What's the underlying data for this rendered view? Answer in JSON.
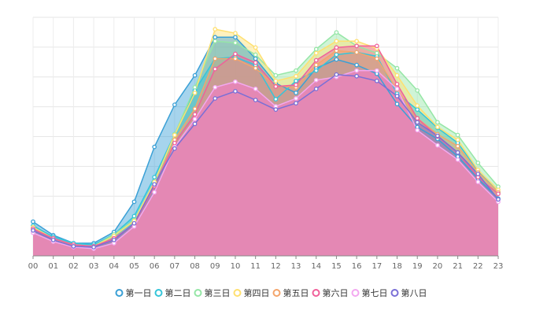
{
  "chart_data": {
    "type": "area",
    "x": [
      "00",
      "01",
      "02",
      "03",
      "04",
      "05",
      "06",
      "07",
      "08",
      "09",
      "10",
      "11",
      "12",
      "13",
      "14",
      "15",
      "16",
      "17",
      "18",
      "19",
      "20",
      "21",
      "22",
      "23"
    ],
    "yticks_visible": false,
    "grid": true,
    "legend_position": "bottom",
    "series": [
      {
        "name": "第一日",
        "color": "#3aa0d6",
        "values": [
          43,
          26,
          16,
          16,
          30,
          68,
          137,
          190,
          227,
          275,
          275,
          248,
          217,
          205,
          236,
          247,
          240,
          229,
          191,
          162,
          147,
          125,
          97,
          72
        ]
      },
      {
        "name": "第二日",
        "color": "#35c5d9",
        "values": [
          38,
          24,
          16,
          14,
          27,
          50,
          99,
          153,
          208,
          248,
          250,
          240,
          197,
          220,
          233,
          253,
          256,
          251,
          204,
          184,
          161,
          142,
          107,
          80
        ]
      },
      {
        "name": "第三日",
        "color": "#95e6a6",
        "values": [
          36,
          22,
          14,
          12,
          27,
          45,
          93,
          153,
          212,
          270,
          268,
          253,
          227,
          233,
          260,
          281,
          264,
          255,
          236,
          208,
          168,
          152,
          117,
          87
        ]
      },
      {
        "name": "第四日",
        "color": "#ffe070",
        "values": [
          36,
          22,
          14,
          12,
          25,
          44,
          93,
          152,
          205,
          285,
          280,
          262,
          220,
          226,
          255,
          270,
          270,
          261,
          227,
          189,
          162,
          146,
          108,
          83
        ]
      },
      {
        "name": "第五日",
        "color": "#f4a56b",
        "values": [
          34,
          22,
          14,
          12,
          22,
          40,
          88,
          146,
          185,
          248,
          248,
          236,
          214,
          212,
          240,
          258,
          256,
          248,
          209,
          173,
          153,
          138,
          105,
          80
        ]
      },
      {
        "name": "第六日",
        "color": "#f0609a",
        "values": [
          34,
          22,
          14,
          12,
          22,
          40,
          88,
          142,
          178,
          235,
          254,
          243,
          213,
          215,
          246,
          262,
          264,
          264,
          216,
          173,
          150,
          130,
          99,
          78
        ]
      },
      {
        "name": "第七日",
        "color": "#f3a8f0",
        "values": [
          29,
          18,
          11,
          9,
          16,
          37,
          80,
          137,
          172,
          212,
          219,
          210,
          188,
          198,
          221,
          225,
          233,
          233,
          210,
          158,
          139,
          121,
          93,
          68
        ]
      },
      {
        "name": "第八日",
        "color": "#7a6fd6",
        "values": [
          32,
          20,
          12,
          11,
          20,
          41,
          90,
          135,
          166,
          198,
          207,
          196,
          184,
          192,
          210,
          228,
          226,
          220,
          201,
          168,
          151,
          130,
          103,
          71
        ]
      }
    ]
  }
}
